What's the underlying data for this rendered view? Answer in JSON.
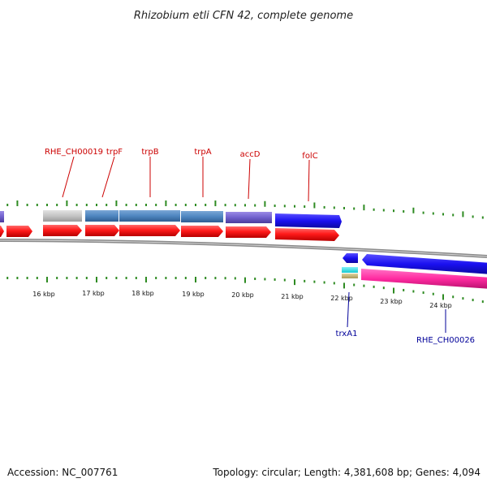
{
  "title": "Rhizobium etli CFN 42, complete genome",
  "footer": {
    "accession": "Accession: NC_007761",
    "topology": "Topology: circular; Length: 4,381,608 bp; Genes: 4,094"
  },
  "colors": {
    "cds_red": "#ff1a1a",
    "steel_blue": "#4f86c0",
    "purple": "#7060cc",
    "blue": "#1a10f0",
    "grey": "#c4c4c4",
    "cyan": "#30e8f0",
    "pink": "#ff2aa0",
    "tan": "#c8b878",
    "tick_green": "#2e8b22",
    "label_red": "#cc0000",
    "label_blue": "#000099",
    "backbone": "#808080"
  },
  "axis": {
    "ticks": [
      {
        "label": "16 kbp"
      },
      {
        "label": "17 kbp"
      },
      {
        "label": "18 kbp"
      },
      {
        "label": "19 kbp"
      },
      {
        "label": "20 kbp"
      },
      {
        "label": "21 kbp"
      },
      {
        "label": "22 kbp"
      },
      {
        "label": "23 kbp"
      },
      {
        "label": "24 kbp"
      }
    ]
  },
  "gene_labels_top": [
    "RHE_CH00019",
    "trpF",
    "trpB",
    "trpA",
    "accD",
    "folC"
  ],
  "gene_labels_bottom": [
    "trxA1",
    "RHE_CH00026"
  ]
}
